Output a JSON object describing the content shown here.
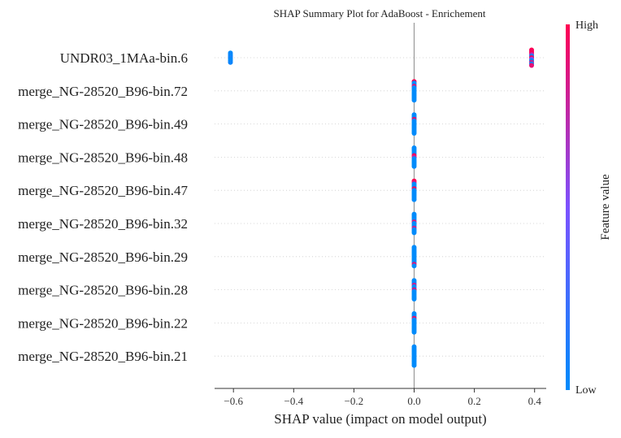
{
  "chart_data": {
    "type": "scatter",
    "title": "SHAP Summary Plot for AdaBoost - Enrichement",
    "xlabel": "SHAP value (impact on model output)",
    "xlim": [
      -0.66,
      0.46
    ],
    "xticks": [
      -0.6,
      -0.4,
      -0.2,
      0.0,
      0.2,
      0.4
    ],
    "xtick_labels": [
      "−0.6",
      "−0.4",
      "−0.2",
      "0.0",
      "0.2",
      "0.4"
    ],
    "colorbar": {
      "label": "Feature value",
      "high": "High",
      "low": "Low",
      "color_low": "#008bfb",
      "color_mid": "#7c52ff",
      "color_high": "#ff0052"
    },
    "grid": "dotted horizontal row lines",
    "features": [
      {
        "name": "UNDR03_1MAa-bin.6",
        "points": [
          {
            "x": -0.61,
            "v": 0.0
          },
          {
            "x": -0.61,
            "v": 0.05
          },
          {
            "x": -0.61,
            "v": 0.0
          },
          {
            "x": -0.61,
            "v": 0.1
          },
          {
            "x": -0.61,
            "v": 0.0
          },
          {
            "x": -0.61,
            "v": 0.0
          },
          {
            "x": -0.61,
            "v": 0.05
          },
          {
            "x": 0.39,
            "v": 1.0
          },
          {
            "x": 0.39,
            "v": 0.95
          },
          {
            "x": 0.39,
            "v": 1.0
          },
          {
            "x": 0.39,
            "v": 0.7
          },
          {
            "x": 0.39,
            "v": 0.0
          },
          {
            "x": 0.39,
            "v": 1.0
          },
          {
            "x": 0.39,
            "v": 0.5
          },
          {
            "x": 0.39,
            "v": 0.0
          },
          {
            "x": 0.39,
            "v": 0.85
          },
          {
            "x": 0.39,
            "v": 0.0
          },
          {
            "x": 0.39,
            "v": 0.9
          }
        ]
      },
      {
        "name": "merge_NG-28520_B96-bin.72",
        "points": [
          {
            "x": 0.0,
            "v": 1.0
          },
          {
            "x": 0.0,
            "v": 0.0
          },
          {
            "x": 0.0,
            "v": 0.0
          },
          {
            "x": 0.0,
            "v": 0.9
          },
          {
            "x": 0.0,
            "v": 0.0
          },
          {
            "x": 0.0,
            "v": 0.0
          },
          {
            "x": 0.0,
            "v": 0.0
          },
          {
            "x": 0.0,
            "v": 0.0
          },
          {
            "x": 0.0,
            "v": 0.0
          },
          {
            "x": 0.0,
            "v": 0.0
          },
          {
            "x": 0.0,
            "v": 0.0
          },
          {
            "x": 0.0,
            "v": 0.0
          },
          {
            "x": 0.0,
            "v": 0.0
          }
        ]
      },
      {
        "name": "merge_NG-28520_B96-bin.49",
        "points": [
          {
            "x": 0.0,
            "v": 0.0
          },
          {
            "x": 0.0,
            "v": 0.0
          },
          {
            "x": 0.0,
            "v": 0.0
          },
          {
            "x": 0.0,
            "v": 0.95
          },
          {
            "x": 0.0,
            "v": 0.0
          },
          {
            "x": 0.0,
            "v": 0.0
          },
          {
            "x": 0.0,
            "v": 0.0
          },
          {
            "x": 0.0,
            "v": 0.0
          },
          {
            "x": 0.0,
            "v": 0.0
          },
          {
            "x": 0.0,
            "v": 0.0
          },
          {
            "x": 0.0,
            "v": 0.0
          },
          {
            "x": 0.0,
            "v": 0.0
          },
          {
            "x": 0.0,
            "v": 0.0
          }
        ]
      },
      {
        "name": "merge_NG-28520_B96-bin.48",
        "points": [
          {
            "x": 0.0,
            "v": 0.0
          },
          {
            "x": 0.0,
            "v": 0.0
          },
          {
            "x": 0.0,
            "v": 0.0
          },
          {
            "x": 0.0,
            "v": 0.0
          },
          {
            "x": 0.0,
            "v": 0.0
          },
          {
            "x": 0.0,
            "v": 1.0
          },
          {
            "x": 0.0,
            "v": 0.8
          },
          {
            "x": 0.0,
            "v": 0.0
          },
          {
            "x": 0.0,
            "v": 0.0
          },
          {
            "x": 0.0,
            "v": 0.0
          },
          {
            "x": 0.0,
            "v": 0.0
          },
          {
            "x": 0.0,
            "v": 0.0
          },
          {
            "x": 0.0,
            "v": 0.0
          }
        ]
      },
      {
        "name": "merge_NG-28520_B96-bin.47",
        "points": [
          {
            "x": 0.0,
            "v": 1.0
          },
          {
            "x": 0.0,
            "v": 0.9
          },
          {
            "x": 0.0,
            "v": 0.0
          },
          {
            "x": 0.0,
            "v": 0.0
          },
          {
            "x": 0.0,
            "v": 0.0
          },
          {
            "x": 0.0,
            "v": 1.0
          },
          {
            "x": 0.0,
            "v": 0.0
          },
          {
            "x": 0.0,
            "v": 0.0
          },
          {
            "x": 0.0,
            "v": 0.0
          },
          {
            "x": 0.0,
            "v": 0.0
          },
          {
            "x": 0.0,
            "v": 0.0
          },
          {
            "x": 0.0,
            "v": 0.0
          },
          {
            "x": 0.0,
            "v": 0.0
          }
        ]
      },
      {
        "name": "merge_NG-28520_B96-bin.32",
        "points": [
          {
            "x": 0.0,
            "v": 0.0
          },
          {
            "x": 0.0,
            "v": 0.0
          },
          {
            "x": 0.0,
            "v": 0.0
          },
          {
            "x": 0.0,
            "v": 0.0
          },
          {
            "x": 0.0,
            "v": 0.0
          },
          {
            "x": 0.0,
            "v": 0.9
          },
          {
            "x": 0.0,
            "v": 0.0
          },
          {
            "x": 0.0,
            "v": 0.0
          },
          {
            "x": 0.0,
            "v": 0.0
          },
          {
            "x": 0.0,
            "v": 0.85
          },
          {
            "x": 0.0,
            "v": 0.0
          },
          {
            "x": 0.0,
            "v": 0.0
          },
          {
            "x": 0.0,
            "v": 0.0
          }
        ]
      },
      {
        "name": "merge_NG-28520_B96-bin.29",
        "points": [
          {
            "x": 0.0,
            "v": 0.0
          },
          {
            "x": 0.0,
            "v": 0.0
          },
          {
            "x": 0.0,
            "v": 0.0
          },
          {
            "x": 0.0,
            "v": 0.0
          },
          {
            "x": 0.0,
            "v": 0.0
          },
          {
            "x": 0.0,
            "v": 0.0
          },
          {
            "x": 0.0,
            "v": 0.0
          },
          {
            "x": 0.0,
            "v": 0.0
          },
          {
            "x": 0.0,
            "v": 0.0
          },
          {
            "x": 0.0,
            "v": 0.0
          },
          {
            "x": 0.0,
            "v": 0.0
          },
          {
            "x": 0.0,
            "v": 0.9
          },
          {
            "x": 0.0,
            "v": 0.0
          }
        ]
      },
      {
        "name": "merge_NG-28520_B96-bin.28",
        "points": [
          {
            "x": 0.0,
            "v": 0.0
          },
          {
            "x": 0.0,
            "v": 0.0
          },
          {
            "x": 0.0,
            "v": 0.0
          },
          {
            "x": 0.0,
            "v": 0.85
          },
          {
            "x": 0.0,
            "v": 0.0
          },
          {
            "x": 0.0,
            "v": 0.0
          },
          {
            "x": 0.0,
            "v": 0.9
          },
          {
            "x": 0.0,
            "v": 0.0
          },
          {
            "x": 0.0,
            "v": 0.0
          },
          {
            "x": 0.0,
            "v": 0.0
          },
          {
            "x": 0.0,
            "v": 0.0
          },
          {
            "x": 0.0,
            "v": 0.0
          },
          {
            "x": 0.0,
            "v": 0.0
          }
        ]
      },
      {
        "name": "merge_NG-28520_B96-bin.22",
        "points": [
          {
            "x": 0.0,
            "v": 0.0
          },
          {
            "x": 0.0,
            "v": 0.0
          },
          {
            "x": 0.0,
            "v": 0.0
          },
          {
            "x": 0.0,
            "v": 0.95
          },
          {
            "x": 0.0,
            "v": 0.0
          },
          {
            "x": 0.0,
            "v": 0.0
          },
          {
            "x": 0.0,
            "v": 0.0
          },
          {
            "x": 0.0,
            "v": 0.0
          },
          {
            "x": 0.0,
            "v": 0.0
          },
          {
            "x": 0.0,
            "v": 0.0
          },
          {
            "x": 0.0,
            "v": 0.0
          },
          {
            "x": 0.0,
            "v": 0.0
          },
          {
            "x": 0.0,
            "v": 0.0
          }
        ]
      },
      {
        "name": "merge_NG-28520_B96-bin.21",
        "points": [
          {
            "x": 0.0,
            "v": 0.0
          },
          {
            "x": 0.0,
            "v": 0.0
          },
          {
            "x": 0.0,
            "v": 0.0
          },
          {
            "x": 0.0,
            "v": 0.0
          },
          {
            "x": 0.0,
            "v": 0.0
          },
          {
            "x": 0.0,
            "v": 0.0
          },
          {
            "x": 0.0,
            "v": 0.0
          },
          {
            "x": 0.0,
            "v": 0.0
          },
          {
            "x": 0.0,
            "v": 0.0
          },
          {
            "x": 0.0,
            "v": 0.0
          },
          {
            "x": 0.0,
            "v": 0.0
          },
          {
            "x": 0.0,
            "v": 0.0
          },
          {
            "x": 0.0,
            "v": 0.0
          }
        ]
      }
    ]
  }
}
